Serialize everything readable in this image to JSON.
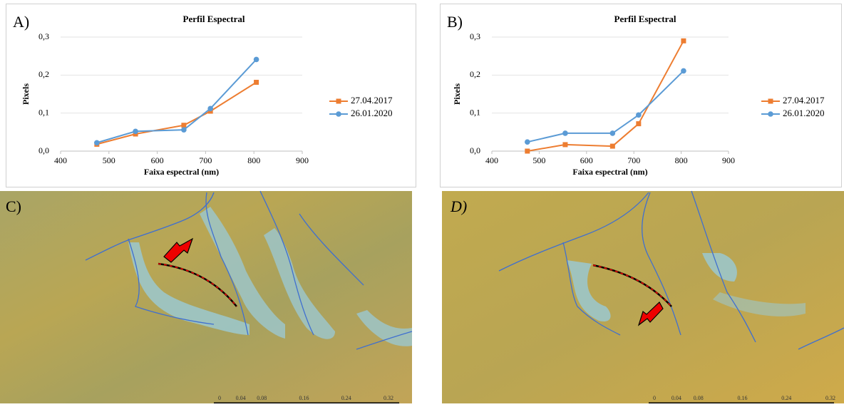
{
  "chart_data": [
    {
      "type": "line",
      "panel_label": "A)",
      "title": "Perfil Espectral",
      "x_label": "Faixa espectral (nm)",
      "y_label": "Pixels",
      "x": [
        475,
        555,
        655,
        710,
        805
      ],
      "series": [
        {
          "name": "27.04.2017",
          "color": "#ed7d31",
          "marker": "square",
          "values": [
            0.018,
            0.045,
            0.068,
            0.105,
            0.181
          ]
        },
        {
          "name": "26.01.2020",
          "color": "#5b9bd5",
          "marker": "circle",
          "values": [
            0.022,
            0.052,
            0.056,
            0.112,
            0.241
          ]
        }
      ],
      "xlim": [
        400,
        900
      ],
      "xticks": [
        400,
        500,
        600,
        700,
        800,
        900
      ],
      "ylim": [
        0,
        0.3
      ],
      "yticks": [
        {
          "value": 0,
          "label": "0,0"
        },
        {
          "value": 0.1,
          "label": "0,1"
        },
        {
          "value": 0.2,
          "label": "0,2"
        },
        {
          "value": 0.3,
          "label": "0,3"
        }
      ],
      "grid": true,
      "legend": "right"
    },
    {
      "type": "line",
      "panel_label": "B)",
      "title": "Perfil Espectral",
      "x_label": "Faixa espectral (nm)",
      "y_label": "Pixels",
      "x": [
        475,
        555,
        655,
        710,
        805
      ],
      "series": [
        {
          "name": "27.04.2017",
          "color": "#ed7d31",
          "marker": "square",
          "values": [
            0.0,
            0.017,
            0.013,
            0.072,
            0.29
          ]
        },
        {
          "name": "26.01.2020",
          "color": "#5b9bd5",
          "marker": "circle",
          "values": [
            0.024,
            0.047,
            0.047,
            0.095,
            0.211
          ]
        }
      ],
      "xlim": [
        400,
        900
      ],
      "xticks": [
        400,
        500,
        600,
        700,
        800,
        900
      ],
      "ylim": [
        0,
        0.3
      ],
      "yticks": [
        {
          "value": 0,
          "label": "0,0"
        },
        {
          "value": 0.1,
          "label": "0,1"
        },
        {
          "value": 0.2,
          "label": "0,2"
        },
        {
          "value": 0.3,
          "label": "0,3"
        }
      ],
      "grid": true,
      "legend": "right"
    }
  ],
  "panels": [
    {
      "label": "C)",
      "scale": [
        "0",
        "0.04",
        "0.08",
        "0.16",
        "0.24",
        "0.32"
      ]
    },
    {
      "label": "D)",
      "scale": [
        "0",
        "0.04",
        "0.08",
        "0.16",
        "0.24",
        "0.32"
      ]
    }
  ]
}
